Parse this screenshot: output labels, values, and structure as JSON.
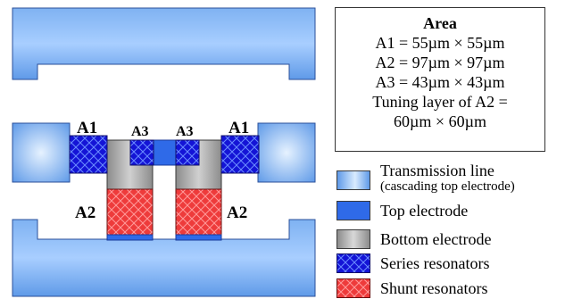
{
  "diagram": {
    "labels": {
      "a1_left": "A1",
      "a1_right": "A1",
      "a3_left": "A3",
      "a3_right": "A3",
      "a2_left": "A2",
      "a2_right": "A2"
    }
  },
  "area_box": {
    "title": "Area",
    "lines": [
      "A1 = 55µm × 55µm",
      "A2 = 97µm × 97µm",
      "A3 = 43µm × 43µm",
      "Tuning layer of A2 =",
      "60µm × 60µm"
    ]
  },
  "legend": {
    "transmission_line": "Transmission line",
    "transmission_line_sub": "(cascading top electrode)",
    "top_electrode": "Top electrode",
    "bottom_electrode": "Bottom electrode",
    "series_resonators": "Series resonators",
    "shunt_resonators": "Shunt resonators"
  },
  "colors": {
    "transmission_line_light": "#cfe6ff",
    "transmission_line_dark": "#4d8fe6",
    "top_electrode": "#2f6ae8",
    "bottom_electrode": "#a9a9a9",
    "series_resonator": "#1414d6",
    "shunt_resonator": "#ee3b3b"
  }
}
